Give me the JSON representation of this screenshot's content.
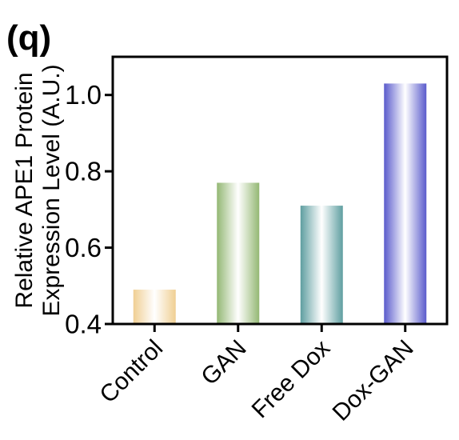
{
  "panel_label": "(q)",
  "chart_data": {
    "type": "bar",
    "title": "",
    "xlabel": "",
    "ylabel": [
      "Relative APE1 Protein",
      "Expression Level (A.U.)"
    ],
    "categories": [
      "Control",
      "GAN",
      "Free Dox",
      "Dox-GAN"
    ],
    "values": [
      0.49,
      0.77,
      0.71,
      1.03
    ],
    "ylim": [
      0.4,
      1.1
    ],
    "yticks": [
      0.4,
      0.6,
      0.8,
      1.0
    ],
    "ytick_labels": [
      "0.4",
      "0.6",
      "0.8",
      "1.0"
    ],
    "grid": false,
    "legend": "none",
    "bar_colors": [
      "#f0cf93",
      "#94b874",
      "#5e9ea0",
      "#5a5bcc"
    ]
  }
}
